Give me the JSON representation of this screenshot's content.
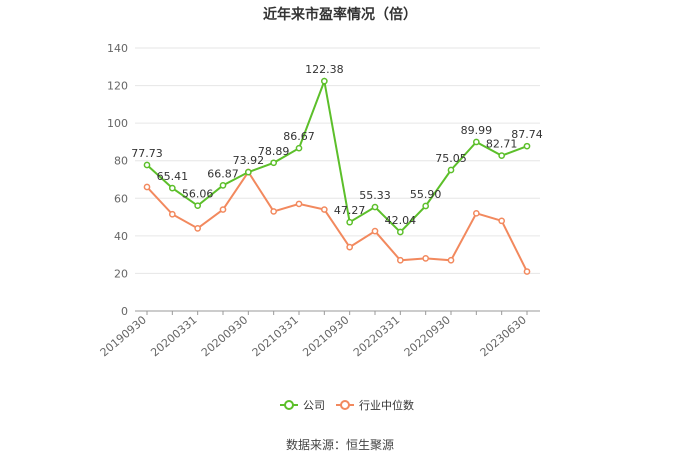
{
  "title": "近年来市盈率情况（倍）",
  "source": "数据来源：恒生聚源",
  "chart_data": {
    "type": "line",
    "title": "近年来市盈率情况（倍）",
    "xlabel": "",
    "ylabel": "",
    "ylim": [
      0,
      140
    ],
    "yticks": [
      0,
      20,
      40,
      60,
      80,
      100,
      120,
      140
    ],
    "grid": true,
    "legend_position": "bottom-center",
    "x_tick_labels": [
      "20190930",
      "20200331",
      "20200930",
      "20210331",
      "20210930",
      "20220331",
      "20220930",
      "20230630"
    ],
    "x_tick_indices": [
      0,
      2,
      4,
      6,
      8,
      10,
      12,
      15
    ],
    "series": [
      {
        "name": "公司",
        "color": "#5cbf2a",
        "show_labels": true,
        "values": [
          77.73,
          65.41,
          56.06,
          66.87,
          73.92,
          78.89,
          86.67,
          122.38,
          47.27,
          55.33,
          42.04,
          55.9,
          75.05,
          89.99,
          82.71,
          87.74
        ]
      },
      {
        "name": "行业中位数",
        "color": "#f2895e",
        "show_labels": false,
        "values": [
          66,
          51.5,
          44,
          54,
          74,
          53,
          57,
          54,
          34,
          42.5,
          27,
          28,
          27,
          52,
          48,
          21
        ]
      }
    ],
    "labels": [
      "77.73",
      "65.41",
      "56.06",
      "66.87",
      "73.92",
      "78.89",
      "86.67",
      "122.38",
      "47.27",
      "55.33",
      "42.04",
      "55.90",
      "75.05",
      "89.99",
      "82.71",
      "87.74"
    ]
  }
}
